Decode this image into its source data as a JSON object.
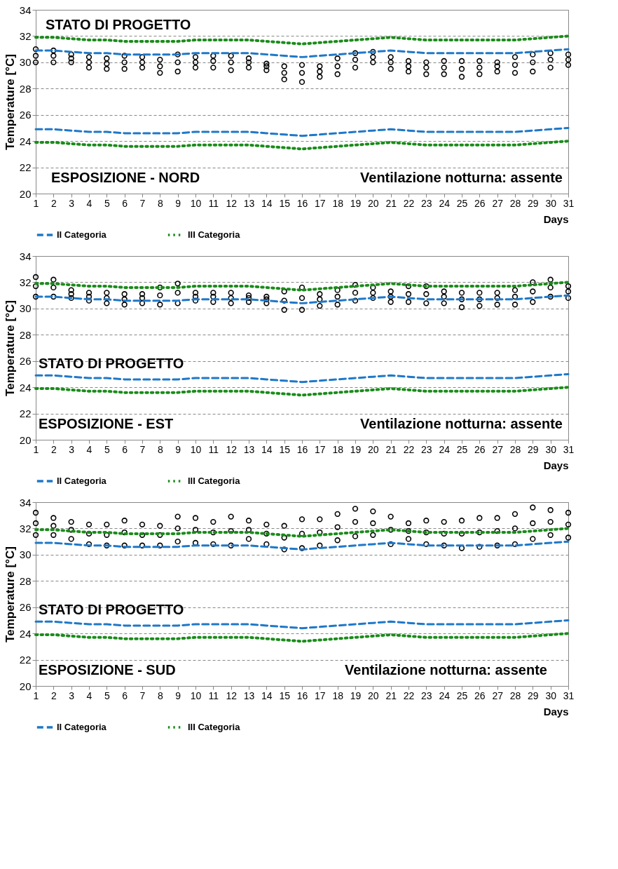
{
  "chart_data": [
    {
      "type": "scatter",
      "xlabel": "Days",
      "ylabel": "Temperature [°C]",
      "annotations": [
        "STATO DI PROGETTO",
        "ESPOSIZIONE - NORD",
        "Ventilazione notturna: assente"
      ],
      "x": [
        1,
        2,
        3,
        4,
        5,
        6,
        7,
        8,
        9,
        10,
        11,
        12,
        13,
        14,
        15,
        16,
        17,
        18,
        19,
        20,
        21,
        22,
        23,
        24,
        25,
        26,
        27,
        28,
        29,
        30,
        31
      ],
      "xlim": [
        1,
        31
      ],
      "xticks": [
        1,
        2,
        3,
        4,
        5,
        6,
        7,
        8,
        9,
        10,
        11,
        12,
        13,
        14,
        15,
        16,
        17,
        18,
        19,
        20,
        21,
        22,
        23,
        24,
        25,
        26,
        27,
        28,
        29,
        30,
        31
      ],
      "ylim": [
        20,
        34
      ],
      "yticks": [
        20,
        22,
        24,
        26,
        28,
        30,
        32,
        34
      ],
      "grid": "y",
      "legend": "bottom",
      "series": [
        {
          "color": "#000000",
          "marker": "circle",
          "x": [
            1,
            2,
            3,
            4,
            5,
            6,
            7,
            8,
            9,
            10,
            11,
            12,
            13,
            14,
            15,
            16,
            17,
            18,
            19,
            20,
            21,
            22,
            23,
            24,
            25,
            26,
            27,
            28,
            29,
            30,
            31,
            1,
            2,
            3,
            4,
            5,
            6,
            7,
            8,
            9,
            10,
            11,
            12,
            13,
            14,
            15,
            16,
            17,
            18,
            19,
            20,
            21,
            22,
            23,
            24,
            25,
            26,
            27,
            28,
            29,
            30,
            31,
            1,
            2,
            3,
            4,
            5,
            6,
            7,
            8,
            9,
            10,
            11,
            12,
            13,
            14,
            15,
            16,
            17,
            18,
            19,
            20,
            21,
            22,
            23,
            24,
            25,
            26,
            27,
            28,
            29,
            30,
            31
          ],
          "values": [
            30.0,
            30.0,
            30.0,
            29.6,
            29.5,
            29.5,
            29.6,
            29.2,
            29.3,
            29.6,
            29.6,
            29.4,
            29.6,
            29.4,
            28.7,
            28.5,
            28.9,
            29.1,
            29.6,
            30.0,
            29.5,
            29.3,
            29.1,
            29.1,
            28.9,
            29.1,
            29.3,
            29.2,
            29.3,
            29.6,
            29.8,
            30.5,
            30.5,
            30.3,
            30.0,
            29.9,
            30.0,
            30.0,
            29.7,
            30.0,
            30.0,
            30.1,
            30.0,
            30.0,
            29.7,
            29.2,
            29.2,
            29.3,
            29.7,
            30.2,
            30.4,
            30.0,
            29.7,
            29.6,
            29.6,
            29.5,
            29.6,
            29.7,
            29.8,
            30.0,
            30.2,
            30.2,
            31.0,
            30.9,
            30.6,
            30.4,
            30.3,
            30.5,
            30.4,
            30.2,
            30.6,
            30.4,
            30.5,
            30.5,
            30.3,
            29.9,
            29.7,
            29.8,
            29.7,
            30.3,
            30.7,
            30.8,
            30.4,
            30.1,
            30.0,
            30.1,
            30.1,
            30.1,
            30.0,
            30.4,
            30.6,
            30.7,
            30.6
          ]
        },
        {
          "type": "line",
          "name": "II Categoria",
          "color": "#1f78c8",
          "line_style": "dashed",
          "values": [
            30.9,
            30.9,
            30.8,
            30.7,
            30.7,
            30.6,
            30.6,
            30.6,
            30.6,
            30.7,
            30.7,
            30.7,
            30.7,
            30.6,
            30.5,
            30.4,
            30.5,
            30.6,
            30.7,
            30.8,
            30.9,
            30.8,
            30.7,
            30.7,
            30.7,
            30.7,
            30.7,
            30.7,
            30.8,
            30.9,
            31.0
          ]
        },
        {
          "type": "line",
          "color": "#1f78c8",
          "line_style": "dashed",
          "values": [
            24.9,
            24.9,
            24.8,
            24.7,
            24.7,
            24.6,
            24.6,
            24.6,
            24.6,
            24.7,
            24.7,
            24.7,
            24.7,
            24.6,
            24.5,
            24.4,
            24.5,
            24.6,
            24.7,
            24.8,
            24.9,
            24.8,
            24.7,
            24.7,
            24.7,
            24.7,
            24.7,
            24.7,
            24.8,
            24.9,
            25.0
          ]
        },
        {
          "type": "line",
          "name": "III Categoria",
          "color": "#1a8c1a",
          "line_style": "dotted",
          "values": [
            31.9,
            31.9,
            31.8,
            31.7,
            31.7,
            31.6,
            31.6,
            31.6,
            31.6,
            31.7,
            31.7,
            31.7,
            31.7,
            31.6,
            31.5,
            31.4,
            31.5,
            31.6,
            31.7,
            31.8,
            31.9,
            31.8,
            31.7,
            31.7,
            31.7,
            31.7,
            31.7,
            31.7,
            31.8,
            31.9,
            32.0
          ]
        },
        {
          "type": "line",
          "color": "#1a8c1a",
          "line_style": "dotted",
          "values": [
            23.9,
            23.9,
            23.8,
            23.7,
            23.7,
            23.6,
            23.6,
            23.6,
            23.6,
            23.7,
            23.7,
            23.7,
            23.7,
            23.6,
            23.5,
            23.4,
            23.5,
            23.6,
            23.7,
            23.8,
            23.9,
            23.8,
            23.7,
            23.7,
            23.7,
            23.7,
            23.7,
            23.7,
            23.8,
            23.9,
            24.0
          ]
        }
      ]
    },
    {
      "type": "scatter",
      "xlabel": "Days",
      "ylabel": "Temperature [°C]",
      "annotations": [
        "STATO DI PROGETTO",
        "ESPOSIZIONE - EST",
        "Ventilazione notturna: assente"
      ],
      "x": [
        1,
        2,
        3,
        4,
        5,
        6,
        7,
        8,
        9,
        10,
        11,
        12,
        13,
        14,
        15,
        16,
        17,
        18,
        19,
        20,
        21,
        22,
        23,
        24,
        25,
        26,
        27,
        28,
        29,
        30,
        31
      ],
      "xlim": [
        1,
        31
      ],
      "xticks": [
        1,
        2,
        3,
        4,
        5,
        6,
        7,
        8,
        9,
        10,
        11,
        12,
        13,
        14,
        15,
        16,
        17,
        18,
        19,
        20,
        21,
        22,
        23,
        24,
        25,
        26,
        27,
        28,
        29,
        30,
        31
      ],
      "ylim": [
        20,
        34
      ],
      "yticks": [
        20,
        22,
        24,
        26,
        28,
        30,
        32,
        34
      ],
      "grid": "y",
      "legend": "bottom",
      "series": [
        {
          "color": "#000000",
          "marker": "circle",
          "x": [
            1,
            2,
            3,
            4,
            5,
            6,
            7,
            8,
            9,
            10,
            11,
            12,
            13,
            14,
            15,
            16,
            17,
            18,
            19,
            20,
            21,
            22,
            23,
            24,
            25,
            26,
            27,
            28,
            29,
            30,
            31,
            1,
            2,
            3,
            4,
            5,
            6,
            7,
            8,
            9,
            10,
            11,
            12,
            13,
            14,
            15,
            16,
            17,
            18,
            19,
            20,
            21,
            22,
            23,
            24,
            25,
            26,
            27,
            28,
            29,
            30,
            31,
            1,
            2,
            3,
            4,
            5,
            6,
            7,
            8,
            9,
            10,
            11,
            12,
            13,
            14,
            15,
            16,
            17,
            18,
            19,
            20,
            21,
            22,
            23,
            24,
            25,
            26,
            27,
            28,
            29,
            30,
            31
          ],
          "values": [
            30.9,
            30.9,
            30.8,
            30.6,
            30.4,
            30.3,
            30.4,
            30.3,
            30.4,
            30.6,
            30.5,
            30.4,
            30.5,
            30.4,
            29.9,
            29.9,
            30.2,
            30.3,
            30.6,
            30.8,
            30.5,
            30.5,
            30.4,
            30.4,
            30.1,
            30.2,
            30.3,
            30.3,
            30.5,
            30.9,
            30.8,
            31.7,
            31.6,
            31.1,
            30.9,
            30.8,
            30.7,
            30.8,
            31.0,
            31.2,
            30.9,
            30.9,
            30.8,
            30.8,
            30.7,
            30.6,
            30.8,
            30.7,
            30.9,
            31.2,
            31.2,
            30.9,
            31.1,
            31.1,
            30.9,
            30.7,
            30.7,
            30.8,
            30.9,
            31.3,
            31.6,
            31.3,
            32.4,
            32.2,
            31.4,
            31.2,
            31.2,
            31.1,
            31.1,
            31.6,
            31.9,
            31.2,
            31.2,
            31.2,
            31.0,
            30.9,
            31.3,
            31.6,
            31.1,
            31.4,
            31.8,
            31.6,
            31.3,
            31.7,
            31.7,
            31.3,
            31.2,
            31.2,
            31.2,
            31.4,
            32.0,
            32.2,
            31.7
          ]
        },
        {
          "type": "line",
          "name": "II Categoria",
          "color": "#1f78c8",
          "line_style": "dashed",
          "values": [
            30.9,
            30.9,
            30.8,
            30.7,
            30.7,
            30.6,
            30.6,
            30.6,
            30.6,
            30.7,
            30.7,
            30.7,
            30.7,
            30.6,
            30.5,
            30.4,
            30.5,
            30.6,
            30.7,
            30.8,
            30.9,
            30.8,
            30.7,
            30.7,
            30.7,
            30.7,
            30.7,
            30.7,
            30.8,
            30.9,
            31.0
          ]
        },
        {
          "type": "line",
          "color": "#1f78c8",
          "line_style": "dashed",
          "values": [
            24.9,
            24.9,
            24.8,
            24.7,
            24.7,
            24.6,
            24.6,
            24.6,
            24.6,
            24.7,
            24.7,
            24.7,
            24.7,
            24.6,
            24.5,
            24.4,
            24.5,
            24.6,
            24.7,
            24.8,
            24.9,
            24.8,
            24.7,
            24.7,
            24.7,
            24.7,
            24.7,
            24.7,
            24.8,
            24.9,
            25.0
          ]
        },
        {
          "type": "line",
          "name": "III Categoria",
          "color": "#1a8c1a",
          "line_style": "dotted",
          "values": [
            31.9,
            31.9,
            31.8,
            31.7,
            31.7,
            31.6,
            31.6,
            31.6,
            31.6,
            31.7,
            31.7,
            31.7,
            31.7,
            31.6,
            31.5,
            31.4,
            31.5,
            31.6,
            31.7,
            31.8,
            31.9,
            31.8,
            31.7,
            31.7,
            31.7,
            31.7,
            31.7,
            31.7,
            31.8,
            31.9,
            32.0
          ]
        },
        {
          "type": "line",
          "color": "#1a8c1a",
          "line_style": "dotted",
          "values": [
            23.9,
            23.9,
            23.8,
            23.7,
            23.7,
            23.6,
            23.6,
            23.6,
            23.6,
            23.7,
            23.7,
            23.7,
            23.7,
            23.6,
            23.5,
            23.4,
            23.5,
            23.6,
            23.7,
            23.8,
            23.9,
            23.8,
            23.7,
            23.7,
            23.7,
            23.7,
            23.7,
            23.7,
            23.8,
            23.9,
            24.0
          ]
        }
      ]
    },
    {
      "type": "scatter",
      "xlabel": "Days",
      "ylabel": "Temperature [°C]",
      "annotations": [
        "STATO DI PROGETTO",
        "ESPOSIZIONE - SUD",
        "Ventilazione notturna: assente"
      ],
      "x": [
        1,
        2,
        3,
        4,
        5,
        6,
        7,
        8,
        9,
        10,
        11,
        12,
        13,
        14,
        15,
        16,
        17,
        18,
        19,
        20,
        21,
        22,
        23,
        24,
        25,
        26,
        27,
        28,
        29,
        30,
        31
      ],
      "xlim": [
        1,
        31
      ],
      "xticks": [
        1,
        2,
        3,
        4,
        5,
        6,
        7,
        8,
        9,
        10,
        11,
        12,
        13,
        14,
        15,
        16,
        17,
        18,
        19,
        20,
        21,
        22,
        23,
        24,
        25,
        26,
        27,
        28,
        29,
        30,
        31
      ],
      "ylim": [
        20,
        34
      ],
      "yticks": [
        20,
        22,
        24,
        26,
        28,
        30,
        32,
        34
      ],
      "grid": "y",
      "legend": "bottom",
      "series": [
        {
          "color": "#000000",
          "marker": "circle",
          "x": [
            1,
            2,
            3,
            4,
            5,
            6,
            7,
            8,
            9,
            10,
            11,
            12,
            13,
            14,
            15,
            16,
            17,
            18,
            19,
            20,
            21,
            22,
            23,
            24,
            25,
            26,
            27,
            28,
            29,
            30,
            31,
            1,
            2,
            3,
            4,
            5,
            6,
            7,
            8,
            9,
            10,
            11,
            12,
            13,
            14,
            15,
            16,
            17,
            18,
            19,
            20,
            21,
            22,
            23,
            24,
            25,
            26,
            27,
            28,
            29,
            30,
            31,
            1,
            2,
            3,
            4,
            5,
            6,
            7,
            8,
            9,
            10,
            11,
            12,
            13,
            14,
            15,
            16,
            17,
            18,
            19,
            20,
            21,
            22,
            23,
            24,
            25,
            26,
            27,
            28,
            29,
            30,
            31
          ],
          "values": [
            31.5,
            31.5,
            31.2,
            30.8,
            30.7,
            30.7,
            30.7,
            30.7,
            31.0,
            30.9,
            30.8,
            30.7,
            31.2,
            30.8,
            30.4,
            30.5,
            30.7,
            31.1,
            31.4,
            31.5,
            30.8,
            31.2,
            30.8,
            30.7,
            30.5,
            30.6,
            30.7,
            30.8,
            31.2,
            31.5,
            31.3,
            32.4,
            32.2,
            31.9,
            31.6,
            31.5,
            31.7,
            31.5,
            31.5,
            32.0,
            31.9,
            31.7,
            31.8,
            31.9,
            31.6,
            31.3,
            31.6,
            31.7,
            32.1,
            32.5,
            32.4,
            31.9,
            31.8,
            31.7,
            31.6,
            31.6,
            31.7,
            31.8,
            32.0,
            32.4,
            32.5,
            32.3,
            33.2,
            32.8,
            32.5,
            32.3,
            32.3,
            32.6,
            32.3,
            32.2,
            32.9,
            32.8,
            32.5,
            32.9,
            32.6,
            32.3,
            32.2,
            32.7,
            32.7,
            33.1,
            33.5,
            33.3,
            32.9,
            32.4,
            32.6,
            32.5,
            32.6,
            32.8,
            32.8,
            33.1,
            33.6,
            33.4,
            33.2
          ]
        },
        {
          "type": "line",
          "name": "II Categoria",
          "color": "#1f78c8",
          "line_style": "dashed",
          "values": [
            30.9,
            30.9,
            30.8,
            30.7,
            30.7,
            30.6,
            30.6,
            30.6,
            30.6,
            30.7,
            30.7,
            30.7,
            30.7,
            30.6,
            30.5,
            30.4,
            30.5,
            30.6,
            30.7,
            30.8,
            30.9,
            30.8,
            30.7,
            30.7,
            30.7,
            30.7,
            30.7,
            30.7,
            30.8,
            30.9,
            31.0
          ]
        },
        {
          "type": "line",
          "color": "#1f78c8",
          "line_style": "dashed",
          "values": [
            24.9,
            24.9,
            24.8,
            24.7,
            24.7,
            24.6,
            24.6,
            24.6,
            24.6,
            24.7,
            24.7,
            24.7,
            24.7,
            24.6,
            24.5,
            24.4,
            24.5,
            24.6,
            24.7,
            24.8,
            24.9,
            24.8,
            24.7,
            24.7,
            24.7,
            24.7,
            24.7,
            24.7,
            24.8,
            24.9,
            25.0
          ]
        },
        {
          "type": "line",
          "name": "III Categoria",
          "color": "#1a8c1a",
          "line_style": "dotted",
          "values": [
            31.9,
            31.9,
            31.8,
            31.7,
            31.7,
            31.6,
            31.6,
            31.6,
            31.6,
            31.7,
            31.7,
            31.7,
            31.7,
            31.6,
            31.5,
            31.4,
            31.5,
            31.6,
            31.7,
            31.8,
            31.9,
            31.8,
            31.7,
            31.7,
            31.7,
            31.7,
            31.7,
            31.7,
            31.8,
            31.9,
            32.0
          ]
        },
        {
          "type": "line",
          "color": "#1a8c1a",
          "line_style": "dotted",
          "values": [
            23.9,
            23.9,
            23.8,
            23.7,
            23.7,
            23.6,
            23.6,
            23.6,
            23.6,
            23.7,
            23.7,
            23.7,
            23.7,
            23.6,
            23.5,
            23.4,
            23.5,
            23.6,
            23.7,
            23.8,
            23.9,
            23.8,
            23.7,
            23.7,
            23.7,
            23.7,
            23.7,
            23.7,
            23.8,
            23.9,
            24.0
          ]
        }
      ]
    }
  ]
}
